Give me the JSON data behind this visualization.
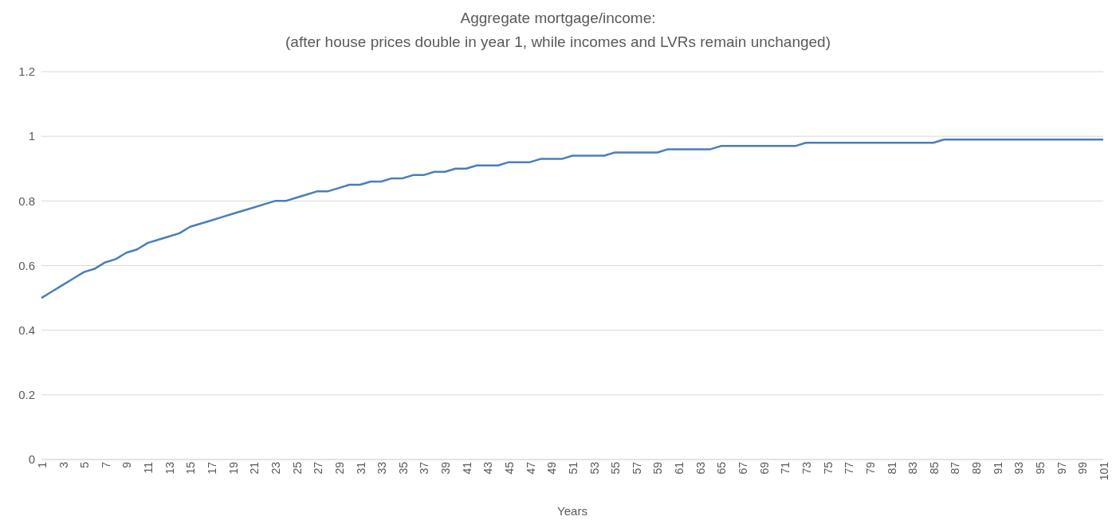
{
  "chart_data": {
    "type": "line",
    "title": "Aggregate mortgage/income:",
    "subtitle": "(after house prices double in year 1, while incomes and LVRs remain unchanged)",
    "xlabel": "Years",
    "categories": [
      "1",
      null,
      "3",
      null,
      "5",
      null,
      "7",
      null,
      "9",
      null,
      "11",
      null,
      "13",
      null,
      "15",
      null,
      "17",
      null,
      "19",
      null,
      "21",
      null,
      "23",
      null,
      "25",
      null,
      "27",
      null,
      "29",
      null,
      "31",
      null,
      "33",
      null,
      "35",
      null,
      "37",
      null,
      "39",
      null,
      "41",
      null,
      "43",
      null,
      "45",
      null,
      "47",
      null,
      "49",
      null,
      "51",
      null,
      "53",
      null,
      "55",
      null,
      "57",
      null,
      "59",
      null,
      "61",
      null,
      "63",
      null,
      "65",
      null,
      "67",
      null,
      "69",
      null,
      "71",
      null,
      "73",
      null,
      "75",
      null,
      "77",
      null,
      "79",
      null,
      "81",
      null,
      "83",
      null,
      "85",
      null,
      "87",
      null,
      "89",
      null,
      "91",
      null,
      "93",
      null,
      "95",
      null,
      "97",
      null,
      "99",
      null,
      "101"
    ],
    "series": [
      {
        "color": "#4a7ebb",
        "values": [
          0.5,
          0.52,
          0.54,
          0.56,
          0.58,
          0.59,
          0.61,
          0.62,
          0.64,
          0.65,
          0.67,
          0.68,
          0.69,
          0.7,
          0.72,
          0.73,
          0.74,
          0.75,
          0.76,
          0.77,
          0.78,
          0.79,
          0.8,
          0.8,
          0.81,
          0.82,
          0.83,
          0.83,
          0.84,
          0.85,
          0.85,
          0.86,
          0.86,
          0.87,
          0.87,
          0.88,
          0.88,
          0.89,
          0.89,
          0.9,
          0.9,
          0.91,
          0.91,
          0.91,
          0.92,
          0.92,
          0.92,
          0.93,
          0.93,
          0.93,
          0.94,
          0.94,
          0.94,
          0.94,
          0.95,
          0.95,
          0.95,
          0.95,
          0.95,
          0.96,
          0.96,
          0.96,
          0.96,
          0.96,
          0.97,
          0.97,
          0.97,
          0.97,
          0.97,
          0.97,
          0.97,
          0.97,
          0.98,
          0.98,
          0.98,
          0.98,
          0.98,
          0.98,
          0.98,
          0.98,
          0.98,
          0.98,
          0.98,
          0.98,
          0.98,
          0.99,
          0.99,
          0.99,
          0.99,
          0.99,
          0.99,
          0.99,
          0.99,
          0.99,
          0.99,
          0.99,
          0.99,
          0.99,
          0.99,
          0.99,
          0.99
        ]
      }
    ],
    "ylim": [
      0,
      1.2
    ],
    "yticks": [
      0,
      0.2,
      0.4,
      0.6,
      0.8,
      1,
      1.2
    ],
    "grid": "y",
    "marker": "none",
    "line_style": "solid",
    "legend": false
  }
}
